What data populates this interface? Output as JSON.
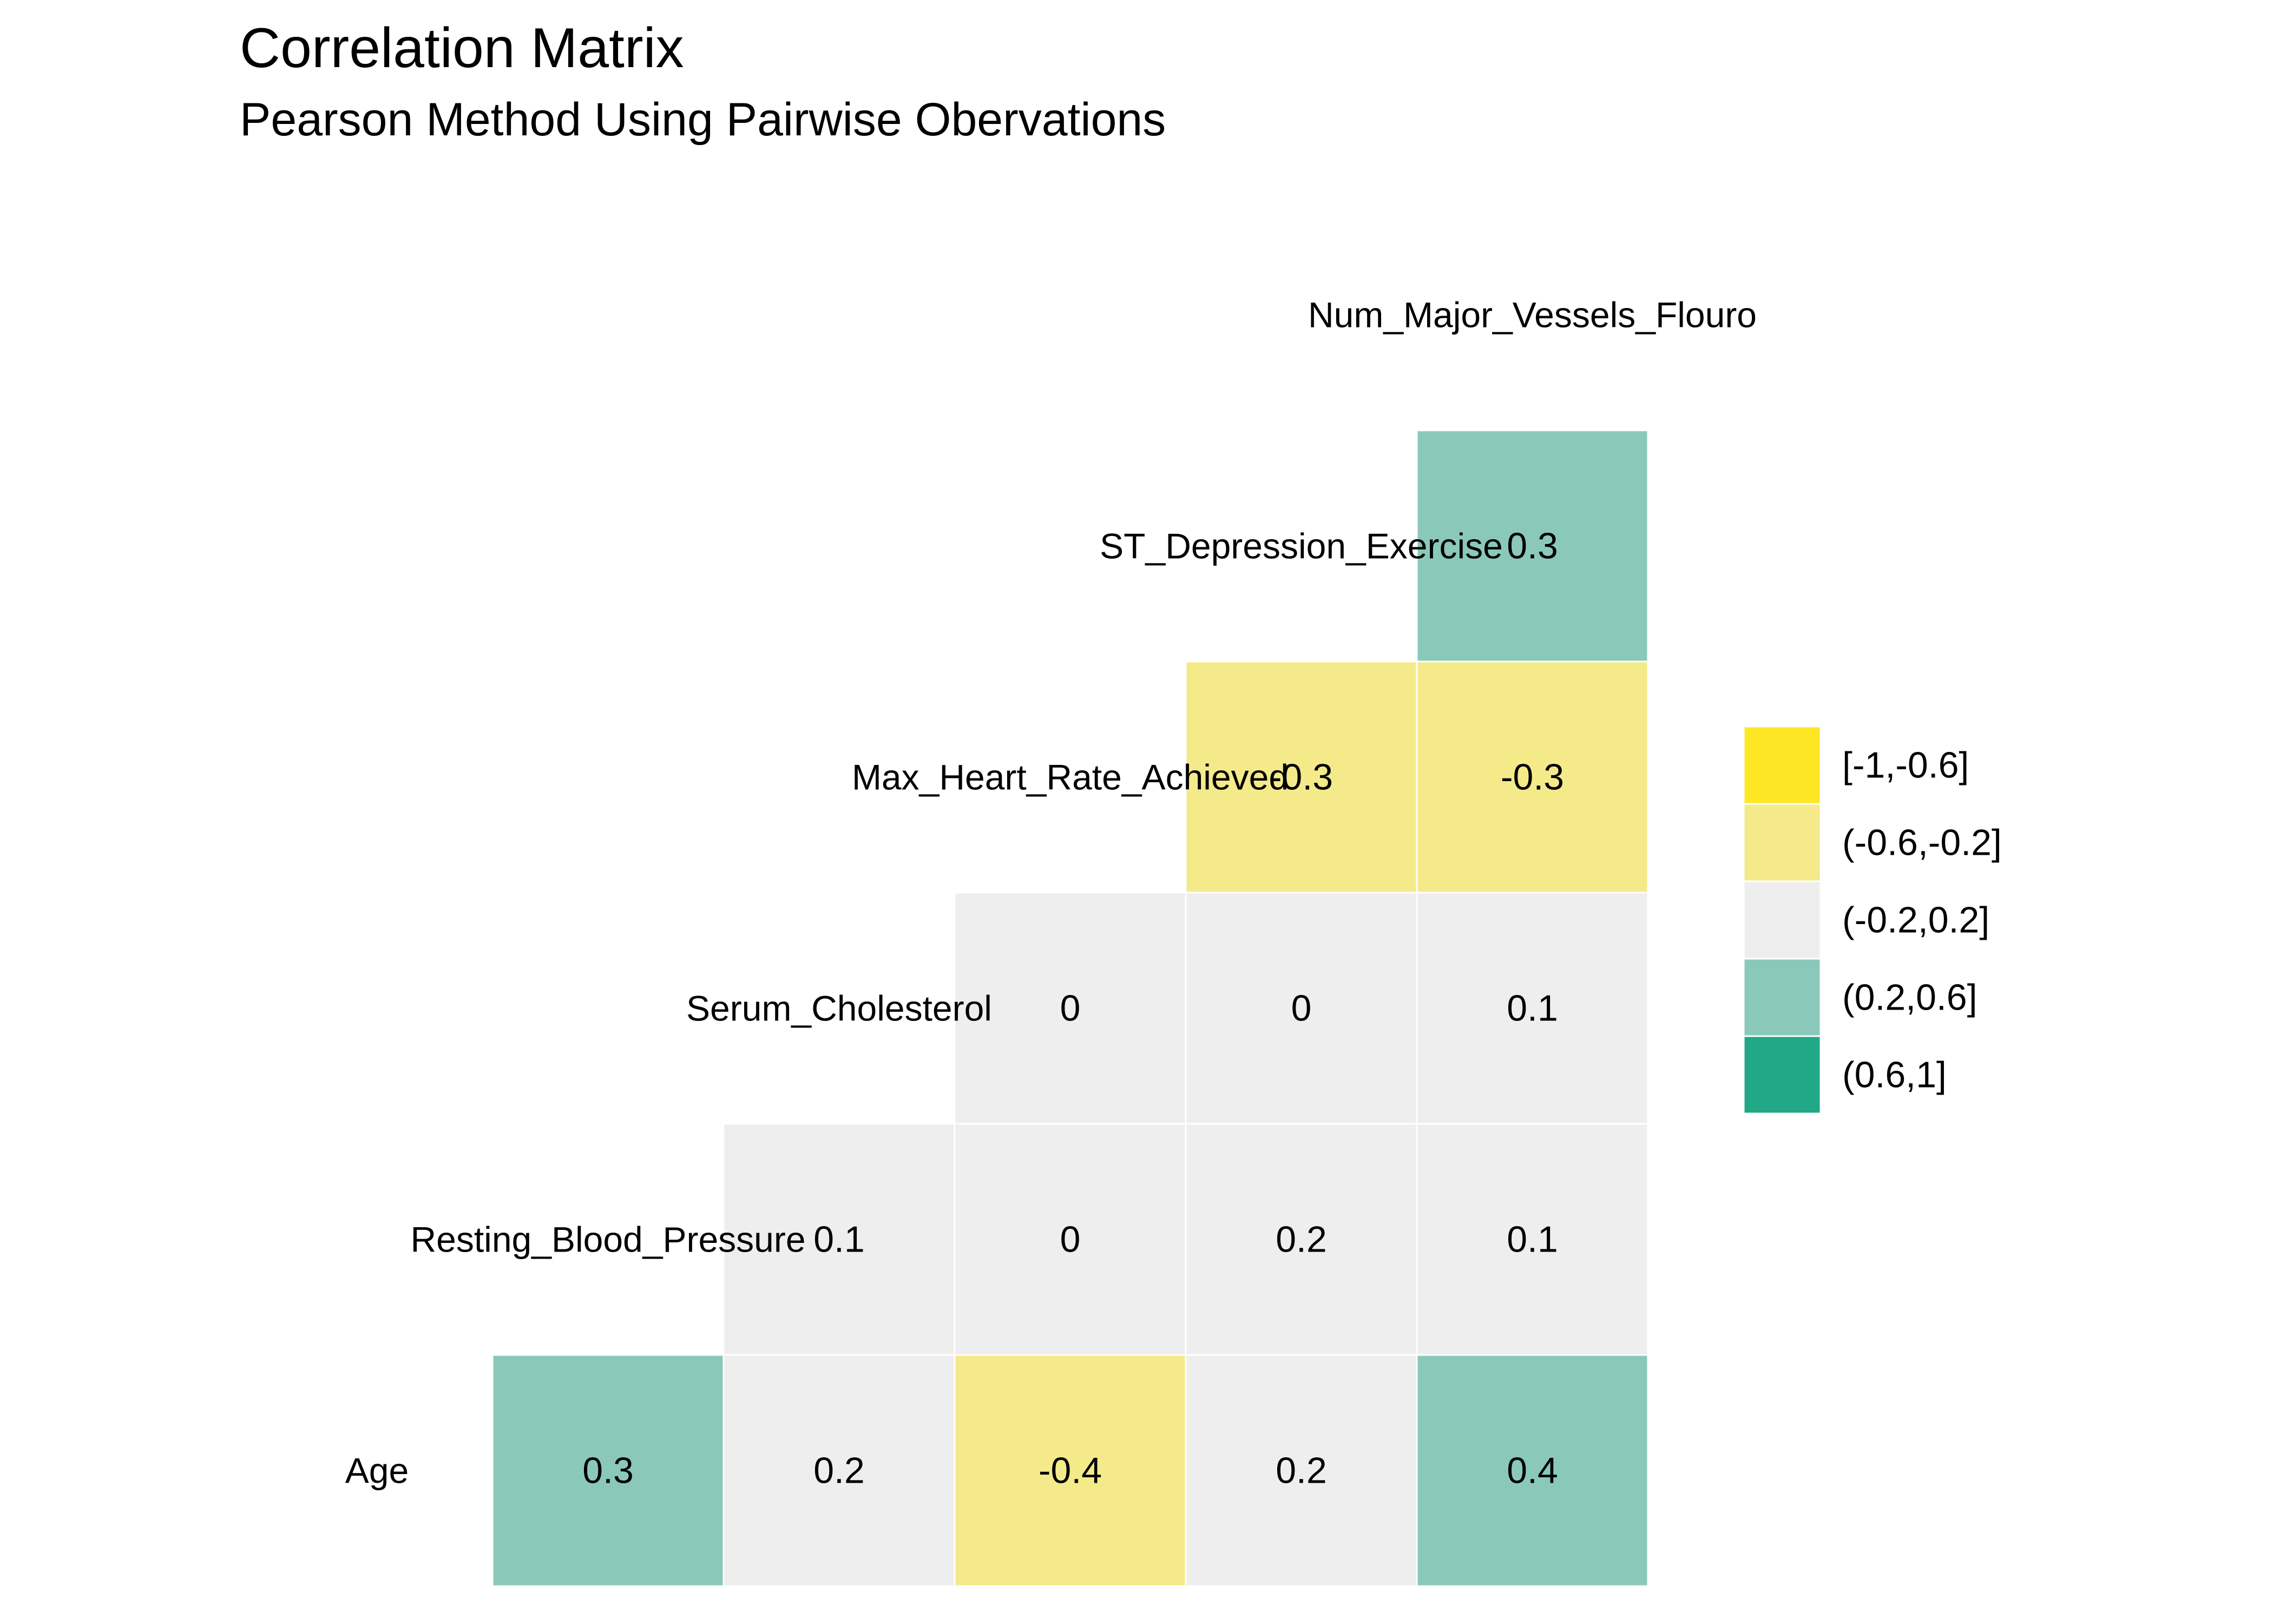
{
  "chart_data": {
    "type": "heatmap",
    "title": "Correlation Matrix",
    "subtitle": "Pearson Method Using Pairwise Obervations",
    "variables": [
      "Age",
      "Resting_Blood_Pressure",
      "Serum_Cholesterol",
      "Max_Heart_Rate_Achieved",
      "ST_Depression_Exercise",
      "Num_Major_Vessels_Flouro"
    ],
    "cells": [
      {
        "row": "Age",
        "col": "Resting_Blood_Pressure",
        "value": 0.3,
        "label": "0.3"
      },
      {
        "row": "Age",
        "col": "Serum_Cholesterol",
        "value": 0.2,
        "label": "0.2"
      },
      {
        "row": "Age",
        "col": "Max_Heart_Rate_Achieved",
        "value": -0.4,
        "label": "-0.4"
      },
      {
        "row": "Age",
        "col": "ST_Depression_Exercise",
        "value": 0.2,
        "label": "0.2"
      },
      {
        "row": "Age",
        "col": "Num_Major_Vessels_Flouro",
        "value": 0.4,
        "label": "0.4"
      },
      {
        "row": "Resting_Blood_Pressure",
        "col": "Serum_Cholesterol",
        "value": 0.1,
        "label": "0.1"
      },
      {
        "row": "Resting_Blood_Pressure",
        "col": "Max_Heart_Rate_Achieved",
        "value": 0,
        "label": "0"
      },
      {
        "row": "Resting_Blood_Pressure",
        "col": "ST_Depression_Exercise",
        "value": 0.2,
        "label": "0.2"
      },
      {
        "row": "Resting_Blood_Pressure",
        "col": "Num_Major_Vessels_Flouro",
        "value": 0.1,
        "label": "0.1"
      },
      {
        "row": "Serum_Cholesterol",
        "col": "Max_Heart_Rate_Achieved",
        "value": 0,
        "label": "0"
      },
      {
        "row": "Serum_Cholesterol",
        "col": "ST_Depression_Exercise",
        "value": 0,
        "label": "0"
      },
      {
        "row": "Serum_Cholesterol",
        "col": "Num_Major_Vessels_Flouro",
        "value": 0.1,
        "label": "0.1"
      },
      {
        "row": "Max_Heart_Rate_Achieved",
        "col": "ST_Depression_Exercise",
        "value": -0.3,
        "label": "-0.3"
      },
      {
        "row": "Max_Heart_Rate_Achieved",
        "col": "Num_Major_Vessels_Flouro",
        "value": -0.3,
        "label": "-0.3"
      },
      {
        "row": "ST_Depression_Exercise",
        "col": "Num_Major_Vessels_Flouro",
        "value": 0.3,
        "label": "0.3"
      }
    ],
    "legend": {
      "placement": "right",
      "entries": [
        {
          "label": "[-1,-0.6]",
          "color": "#fde725"
        },
        {
          "label": "(-0.6,-0.2]",
          "color": "#f4ea8a"
        },
        {
          "label": "(-0.2,0.2]",
          "color": "#eeeeee"
        },
        {
          "label": "(0.2,0.6]",
          "color": "#8ac9ba"
        },
        {
          "label": "(0.6,1]",
          "color": "#20a887"
        }
      ]
    }
  }
}
